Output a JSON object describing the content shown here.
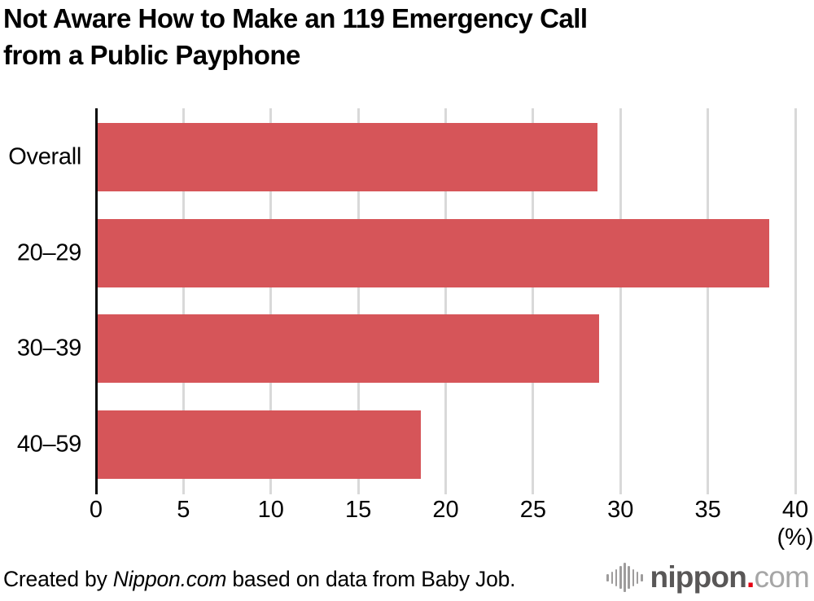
{
  "title": "Not Aware How to Make an 119 Emergency Call\nfrom a Public Payphone",
  "chart_data": {
    "type": "bar",
    "orientation": "horizontal",
    "title": "Not Aware How to Make an 119 Emergency Call from a Public Payphone",
    "categories": [
      "Overall",
      "20–29",
      "30–39",
      "40–59"
    ],
    "values": [
      28.6,
      38.4,
      28.7,
      18.5
    ],
    "xlim": [
      0,
      40
    ],
    "xticks": [
      0,
      5,
      10,
      15,
      20,
      25,
      30,
      35,
      40
    ],
    "unit_label": "(%)",
    "grid": true,
    "bar_color": "#d65559",
    "gridline_color": "#d9d9d9",
    "axis_color": "#0a0a0a",
    "legend": "none"
  },
  "footer": {
    "credit_prefix": "Created by ",
    "credit_source": "Nippon.com",
    "credit_suffix": " based on data from Baby Job.",
    "logo": {
      "icon": "sound-bars-icon",
      "name": "nippon",
      "dot": ".",
      "tld": "com",
      "name_color": "#595757",
      "dot_color": "#e60012",
      "tld_color": "#a6a6a6"
    }
  }
}
